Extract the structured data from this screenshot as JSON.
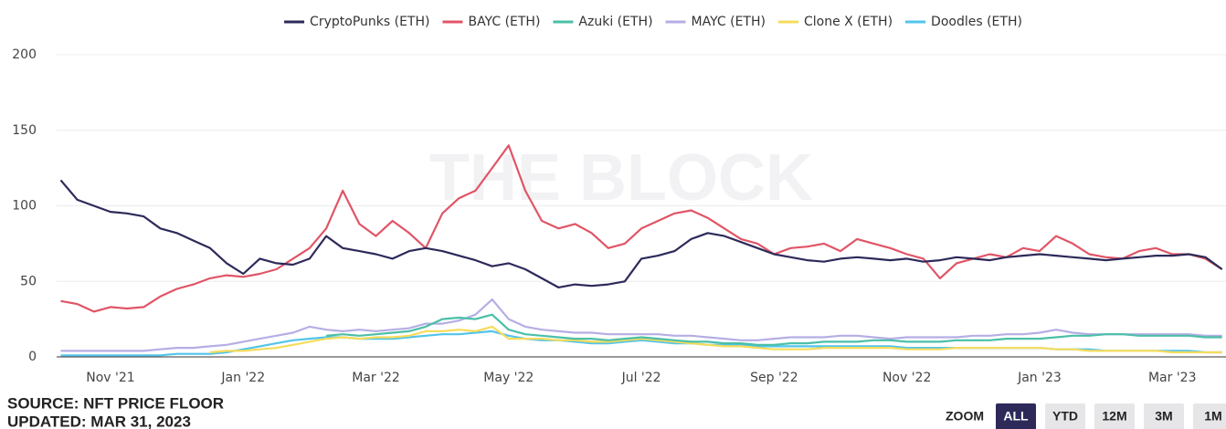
{
  "chart_data": {
    "type": "line",
    "watermark": "THE BLOCK",
    "source": "SOURCE: NFT PRICE FLOOR",
    "updated": "UPDATED: MAR 31, 2023",
    "zoom": {
      "label": "ZOOM",
      "buttons": [
        "ALL",
        "YTD",
        "12M",
        "3M",
        "1M"
      ],
      "active": 0
    },
    "grid": true,
    "legend": "top",
    "ylim": [
      0,
      200
    ],
    "yticks": [
      0,
      50,
      100,
      150,
      200
    ],
    "categories": [
      null,
      null,
      null,
      "Nov '21",
      null,
      null,
      null,
      null,
      null,
      null,
      null,
      "Jan '22",
      null,
      null,
      null,
      null,
      null,
      null,
      null,
      "Mar '22",
      null,
      null,
      null,
      null,
      null,
      null,
      null,
      "May '22",
      null,
      null,
      null,
      null,
      null,
      null,
      null,
      "Jul '22",
      null,
      null,
      null,
      null,
      null,
      null,
      null,
      "Sep '22",
      null,
      null,
      null,
      null,
      null,
      null,
      null,
      "Nov '22",
      null,
      null,
      null,
      null,
      null,
      null,
      null,
      "Jan '23",
      null,
      null,
      null,
      null,
      null,
      null,
      null,
      "Mar '23",
      null,
      null,
      null
    ],
    "series": [
      {
        "name": "CryptoPunks (ETH)",
        "color": "#2d2a5a",
        "values": [
          117,
          104,
          100,
          96,
          95,
          93,
          85,
          82,
          77,
          72,
          62,
          55,
          65,
          62,
          61,
          65,
          80,
          72,
          70,
          68,
          65,
          70,
          72,
          70,
          67,
          64,
          60,
          62,
          58,
          52,
          46,
          48,
          47,
          48,
          50,
          65,
          67,
          70,
          78,
          82,
          80,
          76,
          72,
          68,
          66,
          64,
          63,
          65,
          66,
          65,
          64,
          65,
          63,
          64,
          66,
          65,
          64,
          66,
          67,
          68,
          67,
          66,
          65,
          64,
          65,
          66,
          67,
          67,
          68,
          66,
          58
        ]
      },
      {
        "name": "BAYC (ETH)",
        "color": "#e05566",
        "values": [
          37,
          35,
          30,
          33,
          32,
          33,
          40,
          45,
          48,
          52,
          54,
          53,
          55,
          58,
          65,
          72,
          85,
          110,
          88,
          80,
          90,
          82,
          72,
          95,
          105,
          110,
          125,
          140,
          110,
          90,
          85,
          88,
          82,
          72,
          75,
          85,
          90,
          95,
          97,
          92,
          85,
          78,
          75,
          68,
          72,
          73,
          75,
          70,
          78,
          75,
          72,
          68,
          65,
          52,
          62,
          65,
          68,
          66,
          72,
          70,
          80,
          75,
          68,
          66,
          65,
          70,
          72,
          68,
          68,
          65,
          58
        ]
      },
      {
        "name": "Azuki (ETH)",
        "color": "#4bbfa8",
        "values": [
          null,
          null,
          null,
          null,
          null,
          null,
          null,
          null,
          null,
          null,
          null,
          null,
          null,
          null,
          null,
          null,
          14,
          15,
          14,
          15,
          16,
          17,
          20,
          25,
          26,
          25,
          28,
          18,
          15,
          14,
          13,
          12,
          12,
          11,
          12,
          13,
          12,
          11,
          10,
          10,
          9,
          9,
          8,
          8,
          9,
          9,
          10,
          10,
          10,
          11,
          11,
          10,
          10,
          10,
          11,
          11,
          11,
          12,
          12,
          12,
          13,
          14,
          14,
          15,
          15,
          14,
          14,
          14,
          14,
          13,
          13
        ]
      },
      {
        "name": "MAYC (ETH)",
        "color": "#b5aee4",
        "values": [
          4,
          4,
          4,
          4,
          4,
          4,
          5,
          6,
          6,
          7,
          8,
          10,
          12,
          14,
          16,
          20,
          18,
          17,
          18,
          17,
          18,
          19,
          22,
          22,
          24,
          28,
          38,
          25,
          20,
          18,
          17,
          16,
          16,
          15,
          15,
          15,
          15,
          14,
          14,
          13,
          12,
          11,
          11,
          12,
          13,
          13,
          13,
          14,
          14,
          13,
          12,
          13,
          13,
          13,
          13,
          14,
          14,
          15,
          15,
          16,
          18,
          16,
          15,
          15,
          15,
          15,
          15,
          15,
          15,
          14,
          14
        ]
      },
      {
        "name": "Clone X (ETH)",
        "color": "#f6dc5c",
        "values": [
          null,
          null,
          null,
          null,
          null,
          null,
          null,
          null,
          null,
          3,
          4,
          4,
          5,
          6,
          8,
          10,
          12,
          13,
          12,
          13,
          13,
          14,
          17,
          17,
          18,
          17,
          20,
          12,
          12,
          12,
          11,
          11,
          10,
          10,
          11,
          12,
          11,
          10,
          9,
          8,
          7,
          7,
          6,
          5,
          5,
          5,
          6,
          6,
          6,
          6,
          6,
          5,
          5,
          5,
          6,
          6,
          6,
          6,
          6,
          6,
          5,
          5,
          4,
          4,
          4,
          4,
          4,
          3,
          3,
          3,
          3
        ]
      },
      {
        "name": "Doodles (ETH)",
        "color": "#52c4ea",
        "values": [
          1,
          1,
          1,
          1,
          1,
          1,
          1,
          2,
          2,
          2,
          3,
          5,
          7,
          9,
          11,
          12,
          13,
          13,
          12,
          12,
          12,
          13,
          14,
          15,
          15,
          16,
          17,
          14,
          12,
          11,
          11,
          10,
          9,
          9,
          10,
          11,
          10,
          9,
          9,
          8,
          8,
          8,
          7,
          7,
          7,
          7,
          7,
          7,
          7,
          7,
          7,
          6,
          6,
          6,
          6,
          6,
          6,
          6,
          6,
          6,
          5,
          5,
          5,
          4,
          4,
          4,
          4,
          4,
          4,
          3,
          3
        ]
      }
    ]
  }
}
